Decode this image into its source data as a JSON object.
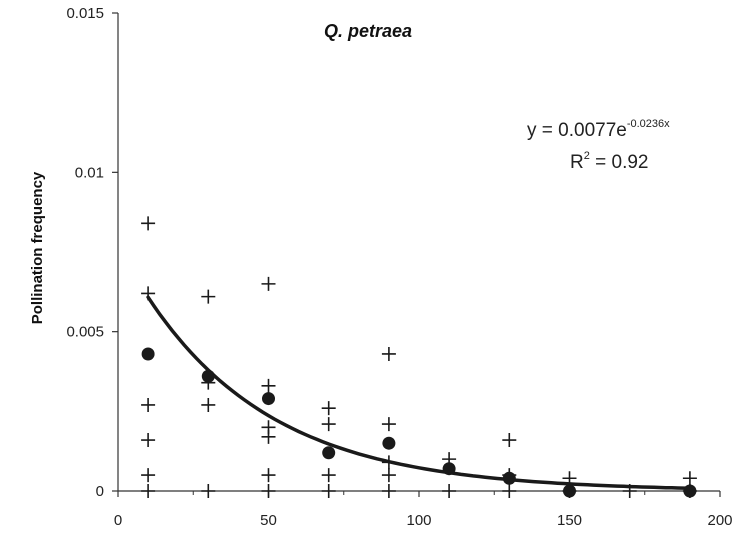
{
  "chart_data": {
    "type": "scatter",
    "title": "Q. petraea",
    "xlabel": "",
    "ylabel": "Pollination frequency",
    "xlim": [
      0,
      200
    ],
    "ylim": [
      0,
      0.015
    ],
    "x_ticks": [
      "0",
      "50",
      "100",
      "150",
      "200"
    ],
    "y_ticks": [
      "0",
      "0.005",
      "0.01",
      "0.015"
    ],
    "grid": false,
    "legend": "none",
    "series": [
      {
        "marker": "plus",
        "points": [
          [
            10,
            0.0084
          ],
          [
            10,
            0.0062
          ],
          [
            10,
            0.0027
          ],
          [
            10,
            0.0016
          ],
          [
            10,
            0.0005
          ],
          [
            10,
            0.0
          ],
          [
            30,
            0.0061
          ],
          [
            30,
            0.0034
          ],
          [
            30,
            0.0027
          ],
          [
            30,
            0.0
          ],
          [
            50,
            0.0065
          ],
          [
            50,
            0.0033
          ],
          [
            50,
            0.002
          ],
          [
            50,
            0.0017
          ],
          [
            50,
            0.0005
          ],
          [
            50,
            0.0
          ],
          [
            70,
            0.0026
          ],
          [
            70,
            0.0021
          ],
          [
            70,
            0.0005
          ],
          [
            70,
            0.0
          ],
          [
            90,
            0.0043
          ],
          [
            90,
            0.0021
          ],
          [
            90,
            0.0009
          ],
          [
            90,
            0.0005
          ],
          [
            90,
            0.0
          ],
          [
            110,
            0.001
          ],
          [
            110,
            0.0
          ],
          [
            130,
            0.0016
          ],
          [
            130,
            0.0005
          ],
          [
            130,
            0.0
          ],
          [
            150,
            0.0004
          ],
          [
            150,
            0.0
          ],
          [
            170,
            0.0
          ],
          [
            190,
            0.0004
          ],
          [
            190,
            0.0
          ]
        ]
      },
      {
        "marker": "dot",
        "points": [
          [
            10,
            0.0043
          ],
          [
            30,
            0.0036
          ],
          [
            50,
            0.0029
          ],
          [
            70,
            0.0012
          ],
          [
            90,
            0.0015
          ],
          [
            110,
            0.0007
          ],
          [
            130,
            0.0004
          ],
          [
            150,
            0.0
          ],
          [
            190,
            0.0
          ]
        ]
      }
    ],
    "trendline": {
      "type": "exponential",
      "a": 0.0077,
      "b": -0.0236,
      "x_range": [
        10,
        190
      ],
      "equation_main": "y = 0.0077e",
      "equation_exponent": "-0.0236x",
      "r2_prefix": "R",
      "r2_sup": "2",
      "r2_suffix": " = 0.92"
    },
    "colors": {
      "marks": "#1a1a1a",
      "axis": "#333333"
    }
  }
}
